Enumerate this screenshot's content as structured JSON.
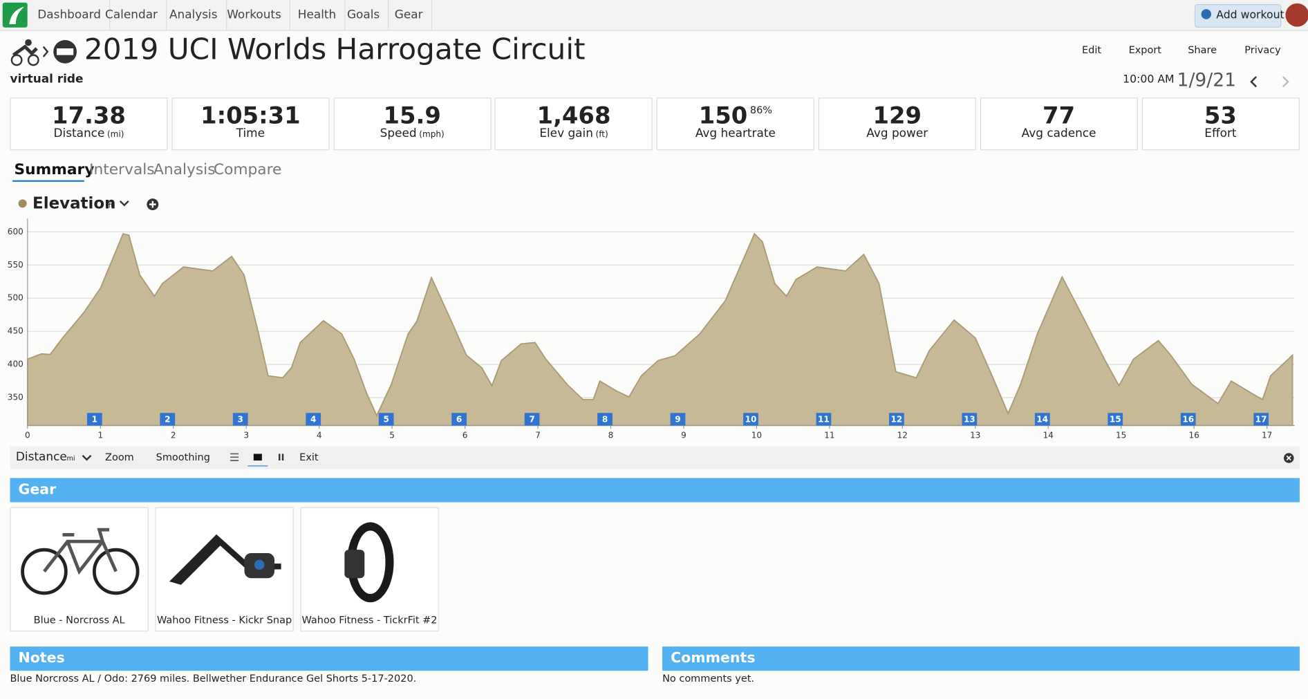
{
  "nav": {
    "items": [
      "Dashboard",
      "Calendar",
      "Analysis",
      "Workouts",
      "Health",
      "Goals",
      "Gear"
    ],
    "add_workout": "Add workout"
  },
  "header": {
    "title": "2019 UCI Worlds Harrogate Circuit",
    "subtitle": "virtual ride",
    "actions": [
      "Edit",
      "Export",
      "Share",
      "Privacy"
    ],
    "time": "10:00 AM",
    "date": "1/9/21"
  },
  "stats": [
    {
      "value": "17.38",
      "label": "Distance",
      "unit": "(mi)"
    },
    {
      "value": "1:05:31",
      "label": "Time"
    },
    {
      "value": "15.9",
      "label": "Speed",
      "unit": "(mph)"
    },
    {
      "value": "1,468",
      "label": "Elev gain",
      "unit": "(ft)"
    },
    {
      "value": "150",
      "extra": "86%",
      "label": "Avg heartrate"
    },
    {
      "value": "129",
      "label": "Avg power"
    },
    {
      "value": "77",
      "label": "Avg cadence"
    },
    {
      "value": "53",
      "label": "Effort"
    }
  ],
  "tabs": [
    "Summary",
    "Intervals",
    "Analysis",
    "Compare"
  ],
  "chart_data": {
    "type": "area",
    "title": "Elevation",
    "y_unit": "ft",
    "color": "#c7b896",
    "line_color": "#a89a72",
    "grid": true,
    "x": [
      0,
      0.19,
      0.31,
      0.48,
      0.77,
      1.0,
      1.17,
      1.31,
      1.39,
      1.54,
      1.74,
      1.85,
      2.14,
      2.54,
      2.8,
      2.97,
      3.17,
      3.3,
      3.5,
      3.62,
      3.74,
      4.06,
      4.31,
      4.48,
      4.65,
      4.79,
      4.99,
      5.22,
      5.34,
      5.54,
      5.79,
      6.02,
      6.23,
      6.37,
      6.5,
      6.77,
      6.96,
      7.11,
      7.4,
      7.62,
      7.76,
      7.85,
      8.08,
      8.25,
      8.42,
      8.65,
      8.88,
      9.22,
      9.57,
      9.97,
      10.08,
      10.25,
      10.41,
      10.54,
      10.83,
      11.22,
      11.47,
      11.68,
      11.91,
      12.19,
      12.37,
      12.71,
      13.0,
      13.23,
      13.45,
      13.62,
      13.85,
      14.19,
      14.48,
      14.77,
      14.97,
      15.17,
      15.51,
      15.68,
      15.97,
      16.33,
      16.51,
      16.77,
      16.94,
      17.05,
      17.35
    ],
    "values": [
      408,
      416,
      415,
      440,
      478,
      515,
      560,
      597,
      595,
      535,
      503,
      522,
      547,
      541,
      563,
      535,
      446,
      383,
      380,
      395,
      433,
      466,
      446,
      408,
      357,
      323,
      370,
      446,
      465,
      531,
      471,
      414,
      395,
      368,
      406,
      431,
      433,
      408,
      370,
      347,
      347,
      375,
      360,
      351,
      383,
      406,
      413,
      446,
      496,
      597,
      585,
      522,
      503,
      528,
      547,
      541,
      566,
      522,
      389,
      380,
      421,
      467,
      440,
      383,
      326,
      370,
      446,
      532,
      471,
      408,
      368,
      408,
      436,
      414,
      370,
      341,
      375,
      358,
      347,
      383,
      414
    ],
    "xlim": [
      0,
      17.38
    ],
    "ylim": [
      308,
      620
    ],
    "xticks": [
      0,
      1,
      2,
      3,
      4,
      5,
      6,
      7,
      8,
      9,
      10,
      11,
      12,
      13,
      14,
      15,
      16,
      17
    ],
    "yticks": [
      350,
      400,
      450,
      500,
      550,
      600
    ],
    "interval_markers": [
      1,
      2,
      3,
      4,
      5,
      6,
      7,
      8,
      9,
      10,
      11,
      12,
      13,
      14,
      15,
      16,
      17
    ]
  },
  "toolbar": {
    "x_axis": "Distance",
    "x_unit": "mi",
    "buttons": [
      "Zoom",
      "Smoothing",
      "Exit"
    ]
  },
  "gear": {
    "title": "Gear",
    "items": [
      "Blue - Norcross AL",
      "Wahoo Fitness - Kickr Snap",
      "Wahoo Fitness - TickrFit #2"
    ]
  },
  "notes": {
    "title": "Notes",
    "text": "Blue Norcross AL / Odo: 2769 miles. Bellwether Endurance Gel Shorts 5-17-2020."
  },
  "comments": {
    "title": "Comments",
    "text": "No comments yet."
  }
}
